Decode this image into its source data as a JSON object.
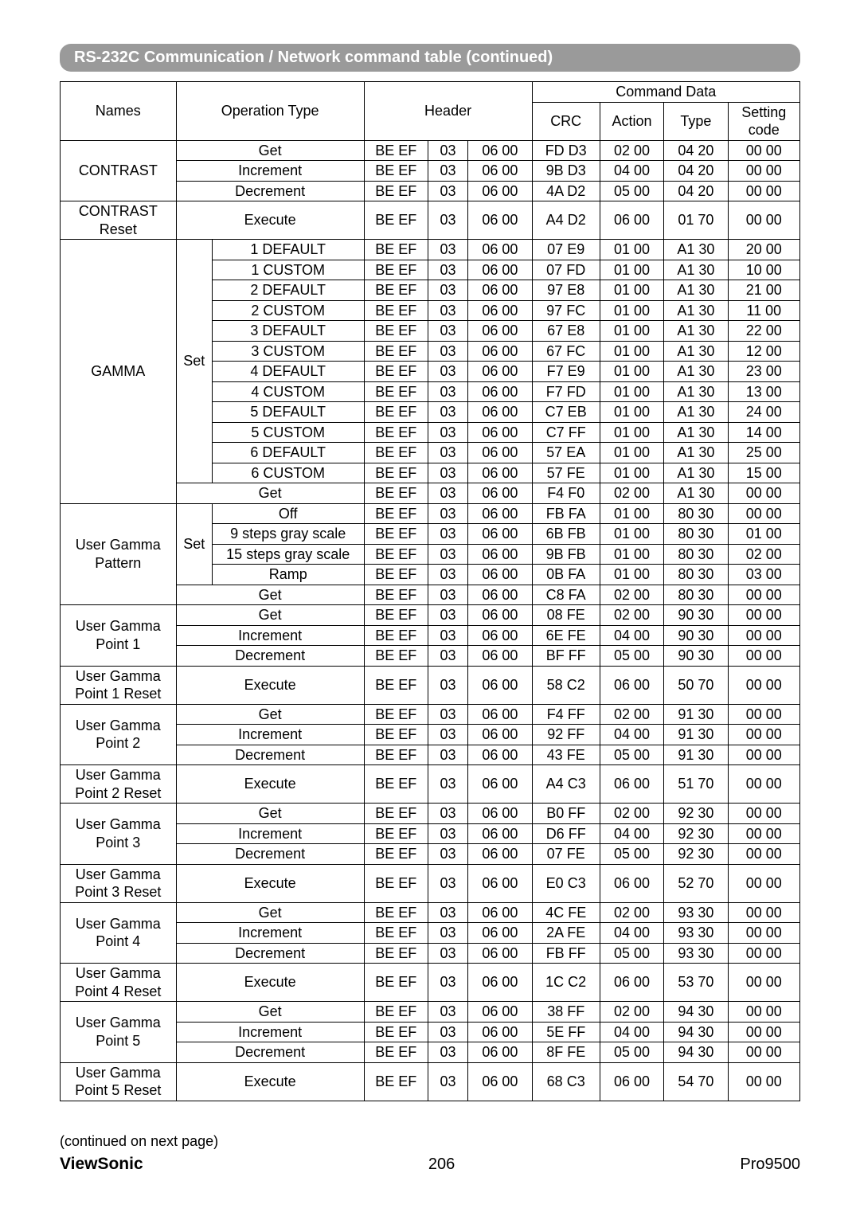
{
  "title": "RS-232C Communication / Network command table (continued)",
  "cols": {
    "names": "Names",
    "optype": "Operation Type",
    "header": "Header",
    "cmddata": "Command Data",
    "crc": "CRC",
    "action": "Action",
    "type": "Type",
    "setting": "Setting code"
  },
  "widths": {
    "names": "14.5%",
    "op1": "4.5%",
    "op2": "19%",
    "h1": "8%",
    "h2": "5%",
    "h3": "8%",
    "crc": "8.5%",
    "action": "8%",
    "type": "8%",
    "setting": "9%"
  },
  "rows": [
    {
      "name": "CONTRAST",
      "nrows": 3,
      "sub": null,
      "op": "Get",
      "h1": "BE  EF",
      "h2": "03",
      "h3": "06  00",
      "crc": "FD  D3",
      "a": "02  00",
      "t": "04  20",
      "s": "00  00"
    },
    {
      "op": "Increment",
      "h1": "BE  EF",
      "h2": "03",
      "h3": "06  00",
      "crc": "9B  D3",
      "a": "04  00",
      "t": "04  20",
      "s": "00  00"
    },
    {
      "op": "Decrement",
      "h1": "BE  EF",
      "h2": "03",
      "h3": "06  00",
      "crc": "4A  D2",
      "a": "05  00",
      "t": "04  20",
      "s": "00  00"
    },
    {
      "name": "CONTRAST Reset",
      "nrows": 1,
      "pad": true,
      "op": "Execute",
      "h1": "BE  EF",
      "h2": "03",
      "h3": "06  00",
      "crc": "A4  D2",
      "a": "06  00",
      "t": "01  70",
      "s": "00  00"
    },
    {
      "name": "GAMMA",
      "nrows": 13,
      "sub": "Set",
      "subrows": 12,
      "op2": "1 DEFAULT",
      "h1": "BE  EF",
      "h2": "03",
      "h3": "06  00",
      "crc": "07  E9",
      "a": "01  00",
      "t": "A1  30",
      "s": "20  00"
    },
    {
      "op2": "1 CUSTOM",
      "h1": "BE  EF",
      "h2": "03",
      "h3": "06  00",
      "crc": "07  FD",
      "a": "01  00",
      "t": "A1  30",
      "s": "10  00"
    },
    {
      "op2": "2 DEFAULT",
      "h1": "BE  EF",
      "h2": "03",
      "h3": "06  00",
      "crc": "97  E8",
      "a": "01  00",
      "t": "A1  30",
      "s": "21  00"
    },
    {
      "op2": "2 CUSTOM",
      "h1": "BE  EF",
      "h2": "03",
      "h3": "06  00",
      "crc": "97  FC",
      "a": "01  00",
      "t": "A1  30",
      "s": "11  00"
    },
    {
      "op2": "3 DEFAULT",
      "h1": "BE  EF",
      "h2": "03",
      "h3": "06  00",
      "crc": "67  E8",
      "a": "01  00",
      "t": "A1  30",
      "s": "22  00"
    },
    {
      "op2": "3 CUSTOM",
      "h1": "BE  EF",
      "h2": "03",
      "h3": "06  00",
      "crc": "67  FC",
      "a": "01  00",
      "t": "A1  30",
      "s": "12  00"
    },
    {
      "op2": "4 DEFAULT",
      "h1": "BE  EF",
      "h2": "03",
      "h3": "06  00",
      "crc": "F7  E9",
      "a": "01  00",
      "t": "A1  30",
      "s": "23  00"
    },
    {
      "op2": "4 CUSTOM",
      "h1": "BE  EF",
      "h2": "03",
      "h3": "06  00",
      "crc": "F7  FD",
      "a": "01  00",
      "t": "A1  30",
      "s": "13  00"
    },
    {
      "op2": "5 DEFAULT",
      "h1": "BE  EF",
      "h2": "03",
      "h3": "06  00",
      "crc": "C7  EB",
      "a": "01  00",
      "t": "A1  30",
      "s": "24  00"
    },
    {
      "op2": "5 CUSTOM",
      "h1": "BE  EF",
      "h2": "03",
      "h3": "06  00",
      "crc": "C7  FF",
      "a": "01  00",
      "t": "A1  30",
      "s": "14  00"
    },
    {
      "op2": "6 DEFAULT",
      "h1": "BE  EF",
      "h2": "03",
      "h3": "06  00",
      "crc": "57  EA",
      "a": "01  00",
      "t": "A1  30",
      "s": "25  00"
    },
    {
      "op2": "6 CUSTOM",
      "h1": "BE  EF",
      "h2": "03",
      "h3": "06  00",
      "crc": "57  FE",
      "a": "01  00",
      "t": "A1  30",
      "s": "15  00"
    },
    {
      "op": "Get",
      "h1": "BE  EF",
      "h2": "03",
      "h3": "06  00",
      "crc": "F4  F0",
      "a": "02  00",
      "t": "A1  30",
      "s": "00  00"
    },
    {
      "name": "User Gamma Pattern",
      "nrows": 5,
      "sub": "Set",
      "subrows": 4,
      "op2": "Off",
      "h1": "BE  EF",
      "h2": "03",
      "h3": "06  00",
      "crc": "FB  FA",
      "a": "01  00",
      "t": "80  30",
      "s": "00  00"
    },
    {
      "op2": "9 steps gray scale",
      "h1": "BE  EF",
      "h2": "03",
      "h3": "06  00",
      "crc": "6B  FB",
      "a": "01  00",
      "t": "80  30",
      "s": "01  00"
    },
    {
      "op2": "15 steps gray scale",
      "h1": "BE  EF",
      "h2": "03",
      "h3": "06  00",
      "crc": "9B  FB",
      "a": "01  00",
      "t": "80  30",
      "s": "02  00"
    },
    {
      "op2": "Ramp",
      "h1": "BE  EF",
      "h2": "03",
      "h3": "06  00",
      "crc": "0B  FA",
      "a": "01  00",
      "t": "80  30",
      "s": "03  00"
    },
    {
      "op": "Get",
      "h1": "BE  EF",
      "h2": "03",
      "h3": "06  00",
      "crc": "C8  FA",
      "a": "02  00",
      "t": "80  30",
      "s": "00  00"
    },
    {
      "name": "User Gamma Point 1",
      "nrows": 3,
      "op": "Get",
      "h1": "BE  EF",
      "h2": "03",
      "h3": "06  00",
      "crc": "08  FE",
      "a": "02  00",
      "t": "90  30",
      "s": "00  00"
    },
    {
      "op": "Increment",
      "h1": "BE  EF",
      "h2": "03",
      "h3": "06  00",
      "crc": "6E  FE",
      "a": "04  00",
      "t": "90  30",
      "s": "00  00"
    },
    {
      "op": "Decrement",
      "h1": "BE  EF",
      "h2": "03",
      "h3": "06  00",
      "crc": "BF  FF",
      "a": "05  00",
      "t": "90  30",
      "s": "00  00"
    },
    {
      "name": "User Gamma Point 1 Reset",
      "nrows": 1,
      "pad": true,
      "op": "Execute",
      "h1": "BE  EF",
      "h2": "03",
      "h3": "06  00",
      "crc": "58  C2",
      "a": "06  00",
      "t": "50  70",
      "s": "00  00"
    },
    {
      "name": "User Gamma Point 2",
      "nrows": 3,
      "op": "Get",
      "h1": "BE  EF",
      "h2": "03",
      "h3": "06  00",
      "crc": "F4  FF",
      "a": "02  00",
      "t": "91  30",
      "s": "00  00"
    },
    {
      "op": "Increment",
      "h1": "BE  EF",
      "h2": "03",
      "h3": "06  00",
      "crc": "92  FF",
      "a": "04  00",
      "t": "91  30",
      "s": "00  00"
    },
    {
      "op": "Decrement",
      "h1": "BE  EF",
      "h2": "03",
      "h3": "06  00",
      "crc": "43  FE",
      "a": "05  00",
      "t": "91  30",
      "s": "00  00"
    },
    {
      "name": "User Gamma Point 2 Reset",
      "nrows": 1,
      "pad": true,
      "op": "Execute",
      "h1": "BE  EF",
      "h2": "03",
      "h3": "06  00",
      "crc": "A4  C3",
      "a": "06  00",
      "t": "51  70",
      "s": "00  00"
    },
    {
      "name": "User Gamma Point 3",
      "nrows": 3,
      "op": "Get",
      "h1": "BE  EF",
      "h2": "03",
      "h3": "06  00",
      "crc": "B0  FF",
      "a": "02  00",
      "t": "92  30",
      "s": "00  00"
    },
    {
      "op": "Increment",
      "h1": "BE  EF",
      "h2": "03",
      "h3": "06  00",
      "crc": "D6  FF",
      "a": "04  00",
      "t": "92  30",
      "s": "00  00"
    },
    {
      "op": "Decrement",
      "h1": "BE  EF",
      "h2": "03",
      "h3": "06  00",
      "crc": "07  FE",
      "a": "05  00",
      "t": "92  30",
      "s": "00  00"
    },
    {
      "name": "User Gamma Point 3 Reset",
      "nrows": 1,
      "pad": true,
      "op": "Execute",
      "h1": "BE  EF",
      "h2": "03",
      "h3": "06  00",
      "crc": "E0  C3",
      "a": "06  00",
      "t": "52  70",
      "s": "00  00"
    },
    {
      "name": "User Gamma Point 4",
      "nrows": 3,
      "op": "Get",
      "h1": "BE  EF",
      "h2": "03",
      "h3": "06  00",
      "crc": "4C  FE",
      "a": "02  00",
      "t": "93  30",
      "s": "00  00"
    },
    {
      "op": "Increment",
      "h1": "BE  EF",
      "h2": "03",
      "h3": "06  00",
      "crc": "2A  FE",
      "a": "04  00",
      "t": "93  30",
      "s": "00  00"
    },
    {
      "op": "Decrement",
      "h1": "BE  EF",
      "h2": "03",
      "h3": "06  00",
      "crc": "FB  FF",
      "a": "05  00",
      "t": "93  30",
      "s": "00  00"
    },
    {
      "name": "User Gamma Point 4 Reset",
      "nrows": 1,
      "pad": true,
      "op": "Execute",
      "h1": "BE  EF",
      "h2": "03",
      "h3": "06  00",
      "crc": "1C  C2",
      "a": "06  00",
      "t": "53  70",
      "s": "00  00"
    },
    {
      "name": "User Gamma Point 5",
      "nrows": 3,
      "op": "Get",
      "h1": "BE  EF",
      "h2": "03",
      "h3": "06  00",
      "crc": "38  FF",
      "a": "02  00",
      "t": "94  30",
      "s": "00  00"
    },
    {
      "op": "Increment",
      "h1": "BE  EF",
      "h2": "03",
      "h3": "06  00",
      "crc": "5E  FF",
      "a": "04  00",
      "t": "94  30",
      "s": "00  00"
    },
    {
      "op": "Decrement",
      "h1": "BE  EF",
      "h2": "03",
      "h3": "06  00",
      "crc": "8F  FE",
      "a": "05  00",
      "t": "94  30",
      "s": "00  00"
    },
    {
      "name": "User Gamma Point 5 Reset",
      "nrows": 1,
      "pad": true,
      "op": "Execute",
      "h1": "BE  EF",
      "h2": "03",
      "h3": "06  00",
      "crc": "68  C3",
      "a": "06  00",
      "t": "54  70",
      "s": "00  00"
    }
  ],
  "footer": {
    "continued": "(continued on next page)",
    "brand": "ViewSonic",
    "pagenum": "206",
    "model": "Pro9500"
  }
}
